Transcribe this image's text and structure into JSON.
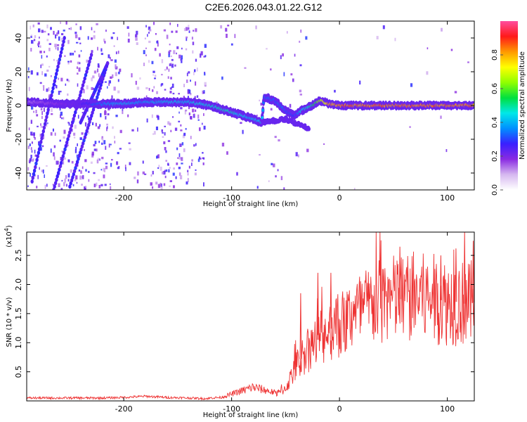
{
  "figure": {
    "title": "C2E6.2026.043.01.22.G12"
  },
  "chart_data": [
    {
      "type": "heatmap",
      "title": "",
      "xlabel": "Height of straight line (km)",
      "ylabel": "Frequency (Hz)",
      "xlim": [
        -290,
        125
      ],
      "ylim": [
        -50,
        50
      ],
      "xticks": [
        -200,
        -100,
        0,
        100
      ],
      "yticks": [
        -40,
        -20,
        0,
        20,
        40
      ],
      "xtick_labels": [
        "-200",
        "-100",
        "0",
        "100"
      ],
      "ytick_labels": [
        "-40",
        "-20",
        "0",
        "20",
        "40"
      ],
      "grid": false,
      "colorbar": {
        "label": "Normalized spectral amplitude",
        "range": [
          0,
          1
        ],
        "ticks": [
          0.0,
          0.2,
          0.4,
          0.6,
          0.8
        ],
        "tick_labels": [
          "0.0",
          "0.2",
          "0.4",
          "0.6",
          "0.8"
        ],
        "colormap": [
          "#ffffff",
          "#d6b8f0",
          "#8a2be2",
          "#3a1fff",
          "#0090ff",
          "#00e8e8",
          "#00e040",
          "#90ff00",
          "#ffff00",
          "#ff9900",
          "#ff1a1a",
          "#ff4d9e"
        ]
      },
      "ridge": {
        "x": [
          -285,
          -260,
          -240,
          -215,
          -200,
          -180,
          -160,
          -140,
          -120,
          -100,
          -85,
          -72,
          -70,
          -60,
          -50,
          -42,
          -35,
          -25,
          -18,
          -10,
          0,
          20,
          50,
          80,
          100,
          125
        ],
        "y": [
          2,
          1,
          1,
          1,
          1,
          2,
          2,
          2,
          0,
          -4,
          -7,
          -10,
          5,
          3,
          -3,
          -6,
          -3,
          0,
          3,
          1,
          0,
          0,
          0,
          0,
          0,
          0
        ],
        "amplitude": [
          0.15,
          0.2,
          0.25,
          0.4,
          0.45,
          0.4,
          0.45,
          0.45,
          0.5,
          0.5,
          0.45,
          0.45,
          0.35,
          0.35,
          0.35,
          0.3,
          0.45,
          0.55,
          0.7,
          0.85,
          0.9,
          0.9,
          0.9,
          0.9,
          0.9,
          0.9
        ]
      }
    },
    {
      "type": "line",
      "title": "",
      "xlabel": "Height of straight line (km)",
      "ylabel": "SNR (10 * v/v)",
      "scale_label": "(x10",
      "scale_exponent": "4",
      "scale_close": ")",
      "xlim": [
        -290,
        125
      ],
      "ylim": [
        0,
        2.9
      ],
      "xticks": [
        -200,
        -100,
        0,
        100
      ],
      "yticks": [
        0.5,
        1.0,
        1.5,
        2.0,
        2.5
      ],
      "xtick_labels": [
        "-200",
        "-100",
        "0",
        "100"
      ],
      "ytick_labels": [
        "0.5",
        "1.0",
        "1.5",
        "2.0",
        "2.5"
      ],
      "grid": false,
      "color": "#ee3333",
      "series": [
        {
          "x": [
            -290,
            -250,
            -220,
            -200,
            -180,
            -160,
            -140,
            -125,
            -110,
            -100,
            -90,
            -80,
            -70,
            -60,
            -55,
            -50,
            -45,
            -40,
            -35,
            -30,
            -25,
            -20,
            -15,
            -10,
            -5,
            0,
            5,
            10,
            20,
            30,
            40,
            50,
            60,
            70,
            80,
            90,
            100,
            110,
            120,
            125
          ],
          "values": [
            0.05,
            0.05,
            0.05,
            0.06,
            0.08,
            0.06,
            0.05,
            0.04,
            0.05,
            0.1,
            0.15,
            0.2,
            0.16,
            0.12,
            0.15,
            0.22,
            0.4,
            0.6,
            0.75,
            0.85,
            0.95,
            1.05,
            1.1,
            1.2,
            1.3,
            1.3,
            1.35,
            1.45,
            1.55,
            1.65,
            1.7,
            1.75,
            1.75,
            1.8,
            1.75,
            1.75,
            1.7,
            1.7,
            1.65,
            1.7
          ],
          "peaks": [
            {
              "x": -36,
              "y": 1.85
            },
            {
              "x": -20,
              "y": 2.2
            },
            {
              "x": -8,
              "y": 2.2
            },
            {
              "x": 56,
              "y": 2.65
            },
            {
              "x": 94,
              "y": 2.5
            },
            {
              "x": 108,
              "y": 2.62
            },
            {
              "x": 116,
              "y": 2.9
            },
            {
              "x": 124,
              "y": 2.75
            }
          ]
        }
      ]
    }
  ]
}
